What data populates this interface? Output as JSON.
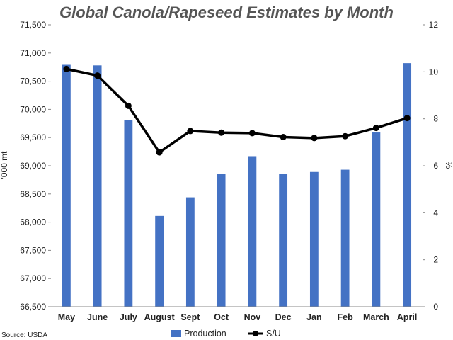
{
  "chart_data": {
    "type": "bar",
    "title": "Global Canola/Rapeseed Estimates by Month",
    "source": "Source: USDA",
    "ylabel": "'000 mt",
    "y2label": "%",
    "ylim": [
      66500,
      71500
    ],
    "y_ticks": [
      "66,500",
      "67,000",
      "67,500",
      "68,000",
      "68,500",
      "69,000",
      "69,500",
      "70,000",
      "70,500",
      "71,000",
      "71,500"
    ],
    "y2lim": [
      0,
      12
    ],
    "y2_ticks": [
      "0",
      "2",
      "4",
      "6",
      "8",
      "10",
      "12"
    ],
    "grid": false,
    "legend_position": "bottom",
    "categories": [
      "May",
      "June",
      "July",
      "August",
      "Sept",
      "Oct",
      "Nov",
      "Dec",
      "Jan",
      "Feb",
      "March",
      "April"
    ],
    "series": [
      {
        "name": "Production",
        "type": "bar",
        "axis": "left",
        "color": "#4472C4",
        "values": [
          70790,
          70780,
          69810,
          68110,
          68440,
          68860,
          69170,
          68860,
          68890,
          68930,
          69590,
          70820
        ]
      },
      {
        "name": "S/U",
        "type": "line",
        "axis": "right",
        "color": "#000000",
        "values": [
          10.12,
          9.84,
          8.55,
          6.57,
          7.48,
          7.41,
          7.39,
          7.22,
          7.18,
          7.26,
          7.61,
          8.03
        ]
      }
    ]
  }
}
